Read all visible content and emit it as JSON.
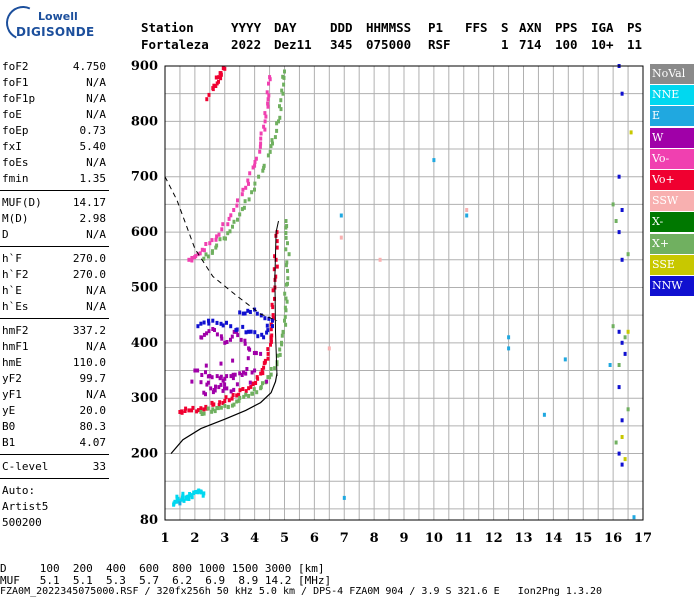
{
  "logo": {
    "line1": "Lowell",
    "line2": "DIGISONDE"
  },
  "header": {
    "labels": {
      "station": "Station",
      "yyyy": "YYYY",
      "day": "DAY",
      "ddd": "DDD",
      "hhmmss": "HHMMSS",
      "p1": "P1",
      "ffs": "FFS",
      "s": "S",
      "axn": "AXN",
      "pps": "PPS",
      "iga": "IGA",
      "ps": "PS"
    },
    "values": {
      "station": "Fortaleza",
      "yyyy": "2022",
      "day": "Dez11",
      "ddd": "345",
      "hhmmss": "075000",
      "p1": "RSF",
      "ffs": "",
      "s": "1",
      "axn": "714",
      "pps": "100",
      "iga": "10+",
      "ps": "11"
    }
  },
  "params": {
    "group1": [
      {
        "name": "foF2",
        "value": "4.750"
      },
      {
        "name": "foF1",
        "value": "N/A"
      },
      {
        "name": "foF1p",
        "value": "N/A"
      },
      {
        "name": "foE",
        "value": "N/A"
      },
      {
        "name": "foEp",
        "value": "0.73"
      },
      {
        "name": "fxI",
        "value": "5.40"
      },
      {
        "name": "foEs",
        "value": "N/A"
      },
      {
        "name": "fmin",
        "value": "1.35"
      }
    ],
    "group2": [
      {
        "name": "MUF(D)",
        "value": "14.17"
      },
      {
        "name": "M(D)",
        "value": "2.98"
      },
      {
        "name": "D",
        "value": "N/A"
      }
    ],
    "group3": [
      {
        "name": "h`F",
        "value": "270.0"
      },
      {
        "name": "h`F2",
        "value": "270.0"
      },
      {
        "name": "h`E",
        "value": "N/A"
      },
      {
        "name": "h`Es",
        "value": "N/A"
      }
    ],
    "group4": [
      {
        "name": "hmF2",
        "value": "337.2"
      },
      {
        "name": "hmF1",
        "value": "N/A"
      },
      {
        "name": "hmE",
        "value": "110.0"
      },
      {
        "name": "yF2",
        "value": "99.7"
      },
      {
        "name": "yF1",
        "value": "N/A"
      },
      {
        "name": "yE",
        "value": "20.0"
      },
      {
        "name": "B0",
        "value": "80.3"
      },
      {
        "name": "B1",
        "value": "4.07"
      }
    ],
    "group5": [
      {
        "name": "C-level",
        "value": "33"
      }
    ],
    "autoscaler": {
      "line1": "Auto:",
      "line2": "Artist5",
      "line3": "500200"
    }
  },
  "legend": [
    {
      "label": "NoVal",
      "color": "#8a8a8a"
    },
    {
      "label": "NNE",
      "color": "#00d8f0"
    },
    {
      "label": "E",
      "color": "#20a8e0"
    },
    {
      "label": "W",
      "color": "#a000a8"
    },
    {
      "label": "Vo-",
      "color": "#f040b0"
    },
    {
      "label": "Vo+",
      "color": "#f00030"
    },
    {
      "label": "SSW",
      "color": "#f8b0b0"
    },
    {
      "label": "X-",
      "color": "#007800"
    },
    {
      "label": "X+",
      "color": "#70b060"
    },
    {
      "label": "SSE",
      "color": "#c8c800"
    },
    {
      "label": "NNW",
      "color": "#1010d0"
    }
  ],
  "footer": {
    "row1": "D     100  200  400  600  800 1000 1500 3000 [km]",
    "row2": "MUF   5.1  5.1  5.3  5.7  6.2  6.9  8.9 14.2 [MHz]",
    "row3": "FZA0M_2022345075000.RSF / 320fx256h 50 kHz 5.0 km / DPS-4 FZA0M 904 / 3.9 S 321.6 E   Ion2Png 1.3.20"
  },
  "chart_data": {
    "type": "scatter",
    "title": "",
    "xlabel": "",
    "ylabel": "",
    "xlim": [
      1,
      17
    ],
    "ylim": [
      80,
      900
    ],
    "xticks": [
      1,
      2,
      3,
      4,
      5,
      6,
      7,
      8,
      9,
      10,
      11,
      12,
      13,
      14,
      15,
      16,
      17
    ],
    "yticks": [
      80,
      200,
      300,
      400,
      500,
      600,
      700,
      800,
      900
    ],
    "grid": true,
    "profile_curve": {
      "style": "solid",
      "points": [
        [
          1.2,
          200
        ],
        [
          1.6,
          225
        ],
        [
          2.2,
          245
        ],
        [
          3.0,
          262
        ],
        [
          3.7,
          278
        ],
        [
          4.2,
          292
        ],
        [
          4.55,
          310
        ],
        [
          4.7,
          330
        ],
        [
          4.75,
          345
        ]
      ]
    },
    "extra_curve": {
      "style": "solid",
      "points": [
        [
          4.75,
          340
        ],
        [
          4.7,
          420
        ],
        [
          4.68,
          520
        ],
        [
          4.72,
          600
        ],
        [
          4.8,
          620
        ]
      ]
    },
    "muf_curve": {
      "style": "dashed",
      "points": [
        [
          1.0,
          700
        ],
        [
          1.4,
          658
        ],
        [
          2.0,
          570
        ],
        [
          2.6,
          520
        ],
        [
          3.4,
          485
        ],
        [
          4.2,
          452
        ],
        [
          4.75,
          440
        ]
      ]
    },
    "series": [
      {
        "name": "F2 trace O",
        "color": "#f00030",
        "points": [
          [
            1.5,
            275
          ],
          [
            1.8,
            278
          ],
          [
            2.2,
            282
          ],
          [
            2.6,
            288
          ],
          [
            3.0,
            295
          ],
          [
            3.4,
            305
          ],
          [
            3.8,
            318
          ],
          [
            4.1,
            335
          ],
          [
            4.3,
            355
          ],
          [
            4.45,
            380
          ],
          [
            4.55,
            410
          ],
          [
            4.62,
            450
          ],
          [
            4.68,
            500
          ],
          [
            4.72,
            550
          ],
          [
            4.75,
            600
          ]
        ]
      },
      {
        "name": "F2 trace X",
        "color": "#70b060",
        "points": [
          [
            2.2,
            275
          ],
          [
            2.6,
            280
          ],
          [
            3.0,
            286
          ],
          [
            3.4,
            294
          ],
          [
            3.8,
            304
          ],
          [
            4.2,
            318
          ],
          [
            4.5,
            338
          ],
          [
            4.75,
            365
          ],
          [
            4.9,
            400
          ],
          [
            5.0,
            440
          ],
          [
            5.05,
            480
          ],
          [
            5.1,
            530
          ],
          [
            5.1,
            580
          ],
          [
            5.05,
            620
          ]
        ]
      },
      {
        "name": "multihop O",
        "color": "#f040b0",
        "points": [
          [
            1.8,
            550
          ],
          [
            2.1,
            560
          ],
          [
            2.5,
            580
          ],
          [
            2.9,
            605
          ],
          [
            3.3,
            640
          ],
          [
            3.7,
            680
          ],
          [
            4.0,
            720
          ],
          [
            4.2,
            760
          ],
          [
            4.35,
            800
          ],
          [
            4.45,
            840
          ],
          [
            4.5,
            880
          ]
        ]
      },
      {
        "name": "multihop X",
        "color": "#70b060",
        "points": [
          [
            2.3,
            552
          ],
          [
            2.7,
            572
          ],
          [
            3.1,
            598
          ],
          [
            3.5,
            632
          ],
          [
            3.9,
            672
          ],
          [
            4.3,
            716
          ],
          [
            4.6,
            760
          ],
          [
            4.8,
            800
          ],
          [
            4.95,
            850
          ],
          [
            5.0,
            890
          ]
        ]
      },
      {
        "name": "spread W",
        "color": "#a000a8",
        "points": [
          [
            2.2,
            410
          ],
          [
            2.6,
            425
          ],
          [
            3.0,
            400
          ],
          [
            3.4,
            420
          ],
          [
            3.8,
            390
          ],
          [
            4.2,
            380
          ],
          [
            2.0,
            350
          ],
          [
            2.5,
            340
          ],
          [
            3.0,
            335
          ],
          [
            3.5,
            345
          ],
          [
            4.0,
            350
          ],
          [
            2.3,
            310
          ],
          [
            2.8,
            320
          ],
          [
            3.3,
            315
          ],
          [
            1.9,
            330
          ],
          [
            4.4,
            330
          ]
        ]
      },
      {
        "name": "spread NNW",
        "color": "#1010d0",
        "points": [
          [
            2.1,
            430
          ],
          [
            2.6,
            440
          ],
          [
            3.2,
            430
          ],
          [
            3.8,
            420
          ],
          [
            4.3,
            410
          ],
          [
            4.6,
            440
          ],
          [
            4.0,
            460
          ],
          [
            3.5,
            455
          ]
        ]
      },
      {
        "name": "Es/low NNE",
        "color": "#00d8f0",
        "points": [
          [
            1.3,
            110
          ],
          [
            1.5,
            115
          ],
          [
            1.7,
            120
          ],
          [
            1.9,
            125
          ],
          [
            2.1,
            130
          ],
          [
            2.3,
            128
          ],
          [
            1.4,
            122
          ],
          [
            1.8,
            118
          ]
        ]
      },
      {
        "name": "top spread",
        "color": "#f00030",
        "points": [
          [
            2.6,
            860
          ],
          [
            2.8,
            880
          ],
          [
            3.0,
            895
          ],
          [
            2.4,
            840
          ]
        ]
      },
      {
        "name": "right column",
        "color": "#1010d0",
        "points": [
          [
            16.2,
            900
          ],
          [
            16.3,
            850
          ],
          [
            16.2,
            700
          ],
          [
            16.3,
            640
          ],
          [
            16.2,
            600
          ],
          [
            16.3,
            550
          ],
          [
            16.2,
            420
          ],
          [
            16.3,
            400
          ],
          [
            16.4,
            380
          ],
          [
            16.2,
            320
          ],
          [
            16.3,
            260
          ],
          [
            16.2,
            200
          ],
          [
            16.3,
            180
          ]
        ]
      },
      {
        "name": "right column X",
        "color": "#70b060",
        "points": [
          [
            16.0,
            650
          ],
          [
            16.1,
            620
          ],
          [
            16.5,
            560
          ],
          [
            16.0,
            430
          ],
          [
            16.4,
            410
          ],
          [
            16.2,
            360
          ],
          [
            16.5,
            280
          ],
          [
            16.1,
            220
          ]
        ]
      },
      {
        "name": "right column SSE",
        "color": "#c8c800",
        "points": [
          [
            16.6,
            780
          ],
          [
            16.5,
            420
          ],
          [
            16.3,
            230
          ],
          [
            16.4,
            190
          ]
        ]
      },
      {
        "name": "scattered E",
        "color": "#20a8e0",
        "points": [
          [
            10.0,
            730
          ],
          [
            12.5,
            410
          ],
          [
            12.5,
            390
          ],
          [
            13.7,
            270
          ],
          [
            14.4,
            370
          ],
          [
            7.0,
            120
          ],
          [
            16.7,
            85
          ],
          [
            6.9,
            630
          ],
          [
            11.1,
            630
          ],
          [
            15.9,
            360
          ],
          [
            1.5,
            110
          ]
        ]
      },
      {
        "name": "scattered misc",
        "color": "#f8b0b0",
        "points": [
          [
            6.5,
            390
          ],
          [
            6.9,
            590
          ],
          [
            8.2,
            550
          ],
          [
            11.1,
            640
          ]
        ]
      }
    ]
  }
}
